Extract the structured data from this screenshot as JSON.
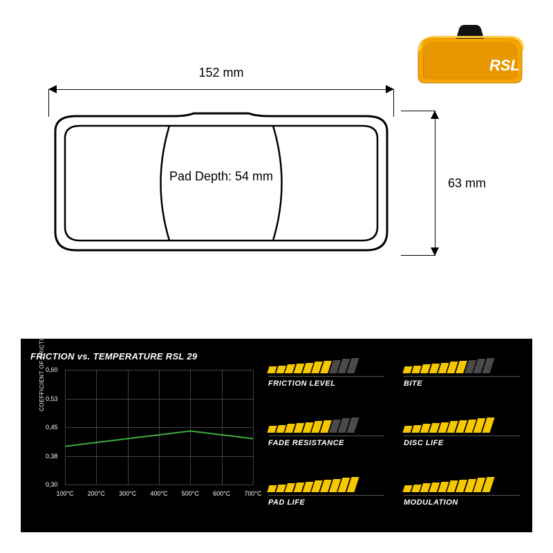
{
  "dimensions": {
    "width_label": "152 mm",
    "height_label": "63 mm",
    "depth_label": "Pad Depth: 54 mm"
  },
  "product": {
    "brand": "RSL",
    "body_color": "#f5a400",
    "accent_color": "#111111"
  },
  "chart": {
    "title": "FRICTION vs. TEMPERATURE RSL 29",
    "ylabel": "COEFFICIENT OF FRICTION",
    "yticks": [
      "0,60",
      "0,53",
      "0,45",
      "0,38",
      "0,30"
    ],
    "xticks": [
      "100°C",
      "200°C",
      "300°C",
      "400°C",
      "500°C",
      "600°C",
      "700°C"
    ],
    "ylim": [
      0.3,
      0.6
    ],
    "xlim": [
      100,
      700
    ],
    "curve_points": [
      [
        100,
        0.4
      ],
      [
        150,
        0.405
      ],
      [
        200,
        0.41
      ],
      [
        250,
        0.415
      ],
      [
        300,
        0.42
      ],
      [
        350,
        0.425
      ],
      [
        400,
        0.43
      ],
      [
        450,
        0.435
      ],
      [
        500,
        0.44
      ],
      [
        550,
        0.435
      ],
      [
        600,
        0.43
      ],
      [
        650,
        0.425
      ],
      [
        700,
        0.42
      ]
    ],
    "curve_color": "#3fae3f",
    "grid_color": "#444444",
    "label_fontsize": 9
  },
  "ratings": {
    "max_bars": 10,
    "fill_color": "#f5c800",
    "empty_color": "#4a4a4a",
    "items": [
      {
        "label": "FRICTION LEVEL",
        "value": 7
      },
      {
        "label": "BITE",
        "value": 7
      },
      {
        "label": "FADE RESISTANCE",
        "value": 7
      },
      {
        "label": "DISC LIFE",
        "value": 10
      },
      {
        "label": "PAD LIFE",
        "value": 10
      },
      {
        "label": "MODULATION",
        "value": 10
      }
    ]
  },
  "style": {
    "bar_min_h": 10,
    "bar_max_h": 22
  }
}
